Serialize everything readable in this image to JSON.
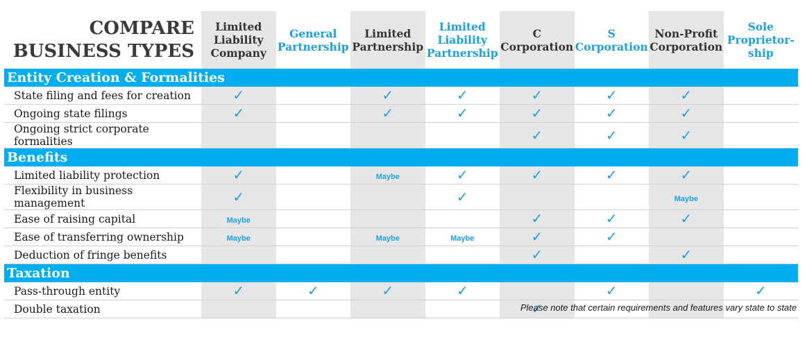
{
  "title_line1": "COMPARE",
  "title_line2": "BUSINESS TYPES",
  "columns": [
    {
      "lines": [
        "Limited",
        "Liability",
        "Company"
      ],
      "style": "gray"
    },
    {
      "lines": [
        "General",
        "Partnership"
      ],
      "style": "blue"
    },
    {
      "lines": [
        "Limited",
        "Partnership"
      ],
      "style": "gray"
    },
    {
      "lines": [
        "Limited",
        "Liability",
        "Partnership"
      ],
      "style": "blue"
    },
    {
      "lines": [
        "C",
        "Corporation"
      ],
      "style": "gray"
    },
    {
      "lines": [
        "S",
        "Corporation"
      ],
      "style": "blue"
    },
    {
      "lines": [
        "Non-Profit",
        "Corporation"
      ],
      "style": "gray"
    },
    {
      "lines": [
        "Sole",
        "Proprietor-",
        "ship"
      ],
      "style": "blue"
    }
  ],
  "check_icon": "checkmark-icon",
  "sections": [
    {
      "title": "Entity Creation & Formalities",
      "rows": [
        {
          "label": "State filing and fees for creation",
          "cells": [
            "check",
            "",
            "check",
            "check",
            "check",
            "check",
            "check",
            ""
          ]
        },
        {
          "label": "Ongoing state filings",
          "cells": [
            "check",
            "",
            "check",
            "check",
            "check",
            "check",
            "check",
            ""
          ]
        },
        {
          "label": "Ongoing strict corporate formalities",
          "cells": [
            "",
            "",
            "",
            "",
            "check",
            "check",
            "check",
            ""
          ]
        }
      ]
    },
    {
      "title": "Benefits",
      "rows": [
        {
          "label": "Limited liability protection",
          "cells": [
            "check",
            "",
            "Maybe",
            "check",
            "check",
            "check",
            "check",
            ""
          ]
        },
        {
          "label": "Flexibility in business management",
          "cells": [
            "check",
            "",
            "",
            "check",
            "",
            "",
            "Maybe",
            ""
          ]
        },
        {
          "label": "Ease of raising capital",
          "cells": [
            "Maybe",
            "",
            "",
            "",
            "check",
            "check",
            "check",
            ""
          ]
        },
        {
          "label": "Ease of transferring ownership",
          "cells": [
            "Maybe",
            "",
            "Maybe",
            "Maybe",
            "check",
            "check",
            "",
            ""
          ]
        },
        {
          "label": "Deduction of fringe benefits",
          "cells": [
            "",
            "",
            "",
            "",
            "check",
            "",
            "check",
            ""
          ]
        }
      ]
    },
    {
      "title": "Taxation",
      "rows": [
        {
          "label": "Pass-through entity",
          "cells": [
            "check",
            "check",
            "check",
            "check",
            "",
            "check",
            "",
            "check"
          ]
        },
        {
          "label": "Double taxation",
          "cells": [
            "",
            "",
            "",
            "",
            "check",
            "",
            "",
            ""
          ]
        }
      ]
    }
  ],
  "colors": {
    "accent": "#00aeef",
    "check": "#1ba1e2",
    "gray_col": "#e6e6e6"
  },
  "footnote": "Please note that certain requirements and features vary state to state"
}
